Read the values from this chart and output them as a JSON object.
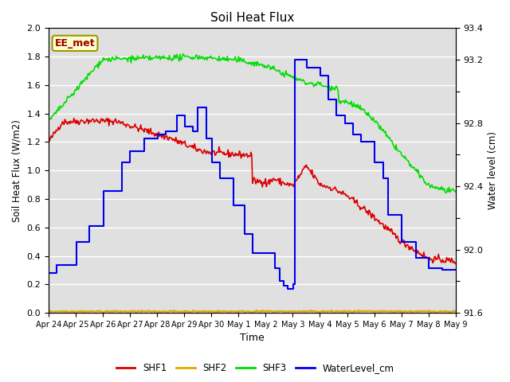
{
  "title": "Soil Heat Flux",
  "ylabel_left": "Soil Heat Flux (W/m2)",
  "ylabel_right": "Water level (cm)",
  "xlabel": "Time",
  "annotation": "EE_met",
  "ylim_left": [
    0.0,
    2.0
  ],
  "ylim_right": [
    91.6,
    93.4
  ],
  "bg_color": "#e0e0e0",
  "x_tick_labels": [
    "Apr 24",
    "Apr 25",
    "Apr 26",
    "Apr 27",
    "Apr 28",
    "Apr 29",
    "Apr 30",
    "May 1",
    "May 2",
    "May 3",
    "May 4",
    "May 5",
    "May 6",
    "May 7",
    "May 8",
    "May 9"
  ],
  "shf1_color": "#dd0000",
  "shf2_color": "#ddaa00",
  "shf3_color": "#00dd00",
  "wl_color": "#0000ee",
  "legend_labels": [
    "SHF1",
    "SHF2",
    "SHF3",
    "WaterLevel_cm"
  ],
  "right_yticks": [
    91.6,
    91.8,
    92.0,
    92.2,
    92.4,
    92.6,
    92.8,
    93.0,
    93.2,
    93.4
  ],
  "right_ytick_labels": [
    "91.6",
    "",
    "92.0",
    "",
    "92.4",
    "",
    "92.8",
    "",
    "93.2",
    "93.4"
  ]
}
